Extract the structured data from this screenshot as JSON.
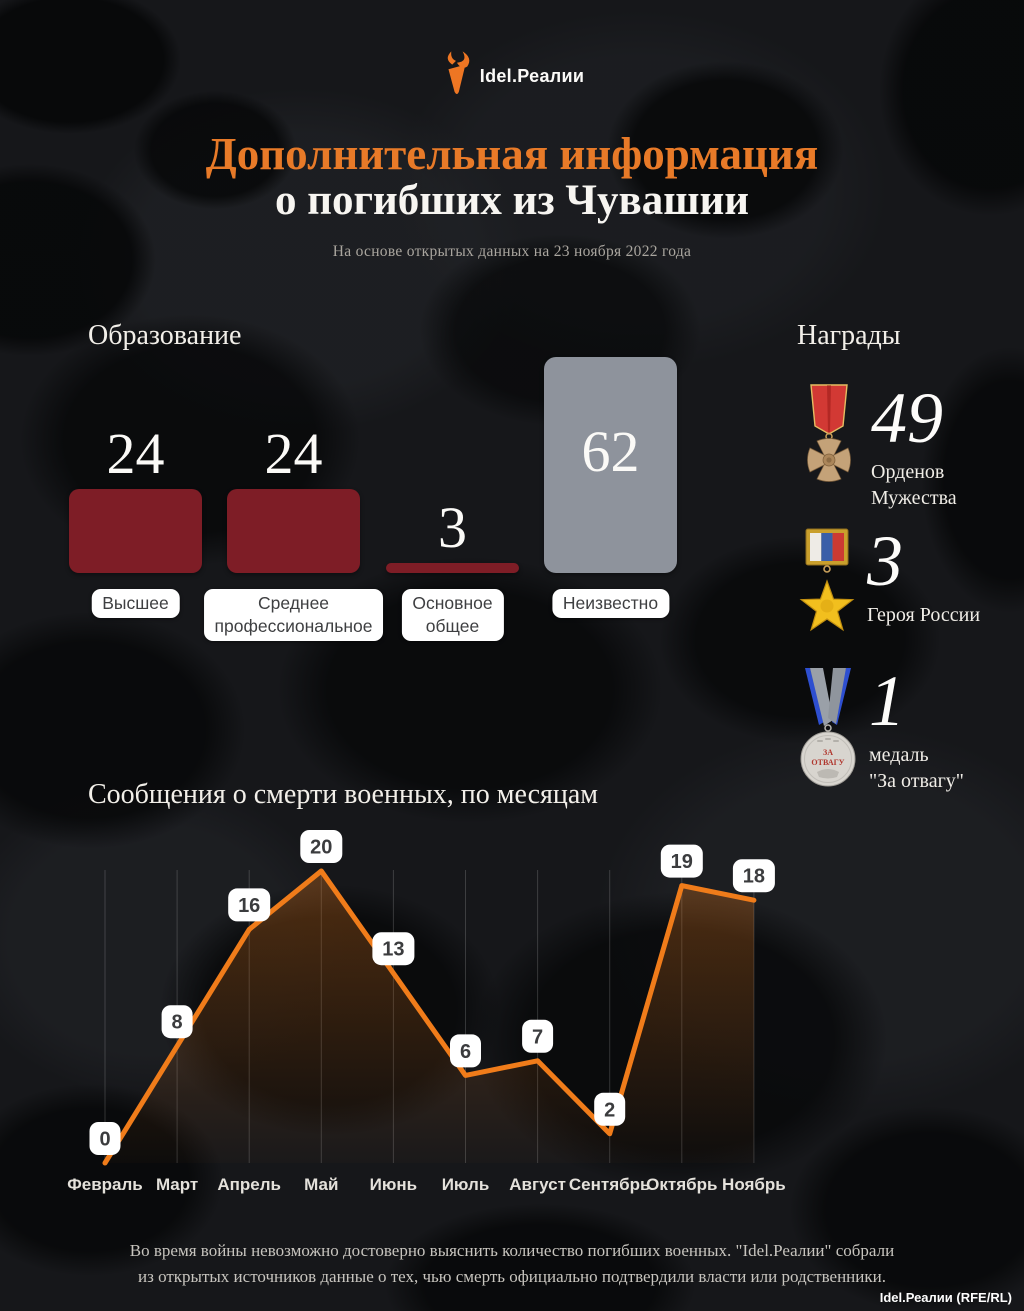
{
  "meta": {
    "logo_text": "Idel.Реалии",
    "watermark": "Idel.Реалии (RFE/RL)",
    "accent_orange": "#e87a28",
    "line_orange": "#f07c1a"
  },
  "header": {
    "title_line1": "Дополнительная информация",
    "title_line2": "о погибших из Чувашии",
    "subtitle": "На основе открытых данных на 23 ноября 2022 года"
  },
  "education": {
    "heading": "Образование",
    "bar_color": "#7e1d26",
    "unknown_color": "#8e939c",
    "items": [
      {
        "label": "Высшее",
        "value": 24,
        "type": "red"
      },
      {
        "label": "Среднее\nпрофессиональное",
        "value": 24,
        "type": "red"
      },
      {
        "label": "Основное\nобщее",
        "value": 3,
        "type": "red"
      },
      {
        "label": "Неизвестно",
        "value": 62,
        "type": "gray"
      }
    ]
  },
  "awards": {
    "heading": "Награды",
    "items": [
      {
        "medal": "order-of-courage",
        "count": "49",
        "label": "Орденов\nМужества"
      },
      {
        "medal": "hero-of-russia",
        "count": "3",
        "label": "Героя России"
      },
      {
        "medal": "medal-za-otvagu",
        "count": "1",
        "label": "медаль\n\"За отвагу\""
      }
    ]
  },
  "chart_data": {
    "type": "line",
    "title": "Сообщения о смерти военных, по месяцам",
    "categories": [
      "Февраль",
      "Март",
      "Апрель",
      "Май",
      "Июнь",
      "Июль",
      "Август",
      "Сентябрь",
      "Октябрь",
      "Ноябрь"
    ],
    "values": [
      0,
      8,
      16,
      20,
      13,
      6,
      7,
      2,
      19,
      18
    ],
    "ylim": [
      0,
      20
    ],
    "line_color": "#f07c1a",
    "grid": "vertical-gridlines-only",
    "legend": "none",
    "data_labels": "white rounded pills above points"
  },
  "footer": {
    "line1": "Во время войны невозможно достоверно выяснить количество погибших военных. \"Idel.Реалии\" собрали",
    "line2": "из открытых источников данные о тех, чью смерть официально подтвердили власти или родственники."
  }
}
